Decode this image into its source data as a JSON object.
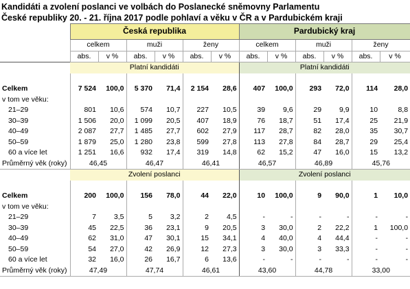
{
  "title": [
    "Kandidáti a zvolení poslanci ve volbách do Poslanecké sněmovny Parlamentu",
    "České republiky 20. - 21. října 2017 podle pohlaví a věku v ČR a v Pardubickém kraji"
  ],
  "table": {
    "regions": [
      "Česká republika",
      "Pardubický kraj"
    ],
    "groups": [
      "celkem",
      "muži",
      "ženy"
    ],
    "subcolumns": [
      "abs.",
      "v %"
    ],
    "sections": [
      {
        "label": "Platní kandidáti",
        "total": {
          "label": "Celkem",
          "cells": [
            "7 524",
            "100,0",
            "5 370",
            "71,4",
            "2 154",
            "28,6",
            "407",
            "100,0",
            "293",
            "72,0",
            "114",
            "28,0"
          ]
        },
        "subheading": "v tom ve věku:",
        "rows": [
          {
            "label": "21–29",
            "cells": [
              "801",
              "10,6",
              "574",
              "10,7",
              "227",
              "10,5",
              "39",
              "9,6",
              "29",
              "9,9",
              "10",
              "8,8"
            ]
          },
          {
            "label": "30–39",
            "cells": [
              "1 506",
              "20,0",
              "1 099",
              "20,5",
              "407",
              "18,9",
              "76",
              "18,7",
              "51",
              "17,4",
              "25",
              "21,9"
            ]
          },
          {
            "label": "40–49",
            "cells": [
              "2 087",
              "27,7",
              "1 485",
              "27,7",
              "602",
              "27,9",
              "117",
              "28,7",
              "82",
              "28,0",
              "35",
              "30,7"
            ]
          },
          {
            "label": "50–59",
            "cells": [
              "1 879",
              "25,0",
              "1 280",
              "23,8",
              "599",
              "27,8",
              "113",
              "27,8",
              "84",
              "28,7",
              "29",
              "25,4"
            ]
          },
          {
            "label": "60 a více let",
            "cells": [
              "1 251",
              "16,6",
              "932",
              "17,4",
              "319",
              "14,8",
              "62",
              "15,2",
              "47",
              "16,0",
              "15",
              "13,2"
            ]
          }
        ],
        "average": {
          "label": "Průměrný věk (roky)",
          "values": [
            "46,45",
            "46,47",
            "46,41",
            "46,57",
            "46,89",
            "45,76"
          ]
        }
      },
      {
        "label": "Zvolení poslanci",
        "total": {
          "label": "Celkem",
          "cells": [
            "200",
            "100,0",
            "156",
            "78,0",
            "44",
            "22,0",
            "10",
            "100,0",
            "9",
            "90,0",
            "1",
            "10,0"
          ]
        },
        "subheading": "v tom ve věku:",
        "rows": [
          {
            "label": "21–29",
            "cells": [
              "7",
              "3,5",
              "5",
              "3,2",
              "2",
              "4,5",
              "-",
              "-",
              "-",
              "-",
              "-",
              "-"
            ]
          },
          {
            "label": "30–39",
            "cells": [
              "45",
              "22,5",
              "36",
              "23,1",
              "9",
              "20,5",
              "3",
              "30,0",
              "2",
              "22,2",
              "1",
              "100,0"
            ]
          },
          {
            "label": "40–49",
            "cells": [
              "62",
              "31,0",
              "47",
              "30,1",
              "15",
              "34,1",
              "4",
              "40,0",
              "4",
              "44,4",
              "-",
              "-"
            ]
          },
          {
            "label": "50–59",
            "cells": [
              "54",
              "27,0",
              "42",
              "26,9",
              "12",
              "27,3",
              "3",
              "30,0",
              "3",
              "33,3",
              "-",
              "-"
            ]
          },
          {
            "label": "60 a více let",
            "cells": [
              "32",
              "16,0",
              "26",
              "16,7",
              "6",
              "13,6",
              "-",
              "-",
              "-",
              "-",
              "-",
              "-"
            ]
          }
        ],
        "average": {
          "label": "Průměrný věk (roky)",
          "values": [
            "47,49",
            "47,74",
            "46,61",
            "43,60",
            "44,78",
            "33,00"
          ]
        }
      }
    ]
  }
}
